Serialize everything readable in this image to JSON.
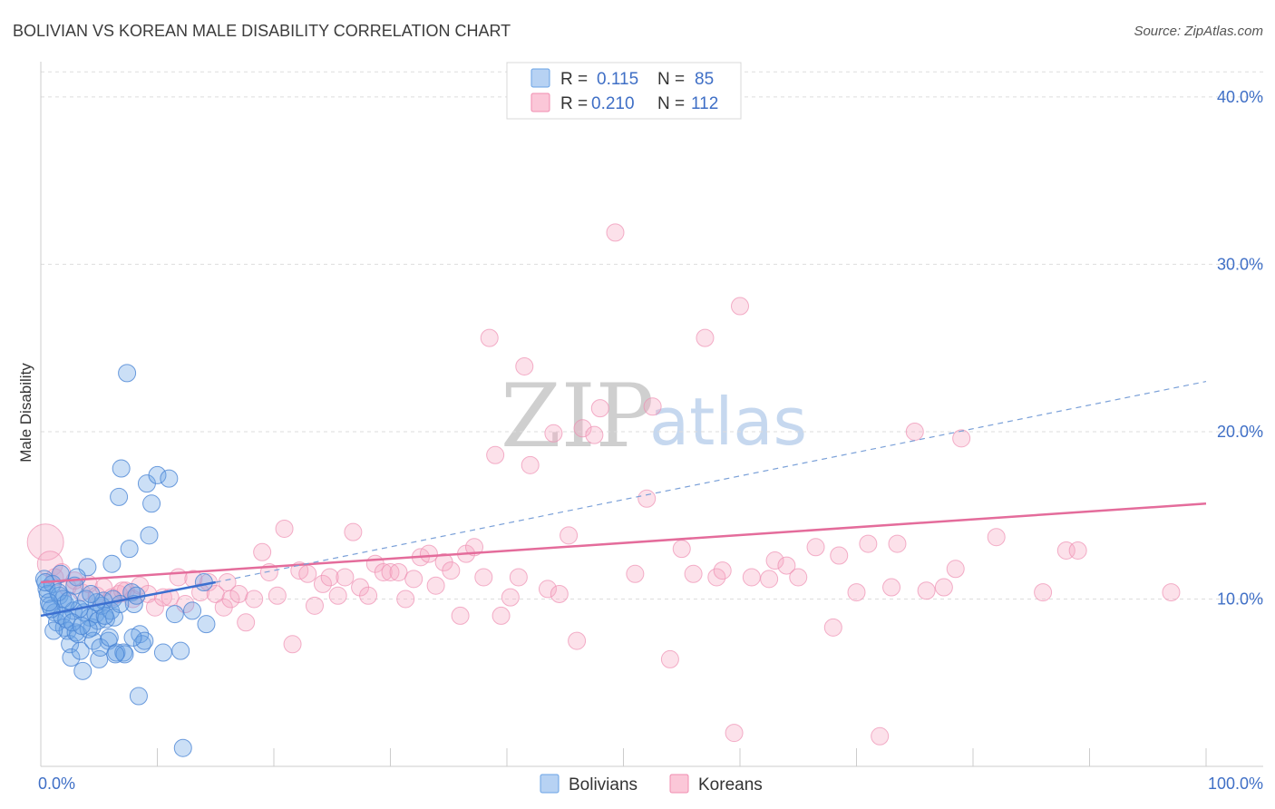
{
  "chart_data": {
    "type": "scatter",
    "title": "BOLIVIAN VS KOREAN MALE DISABILITY CORRELATION CHART",
    "source": "Source: ZipAtlas.com",
    "xlabel": "",
    "ylabel": "Male Disability",
    "xlim": [
      0,
      100
    ],
    "ylim": [
      0,
      42
    ],
    "x_tick_labels": [
      "0.0%",
      "100.0%"
    ],
    "y_ticks": [
      10,
      20,
      30,
      40
    ],
    "y_tick_labels": [
      "10.0%",
      "20.0%",
      "30.0%",
      "40.0%"
    ],
    "grid": true,
    "watermark": {
      "zip": "ZIP",
      "atlas": "atlas"
    },
    "legend": {
      "position": "top-center",
      "entries": [
        {
          "r_label": "R =",
          "r": "0.115",
          "n_label": "N =",
          "n": "85",
          "color": "#6aa3e6"
        },
        {
          "r_label": "R =",
          "r": "0.210",
          "n_label": "N =",
          "n": "112",
          "color": "#f08cb0"
        }
      ]
    },
    "series": [
      {
        "name": "Bolivians",
        "color": "#6aa3e6",
        "edge": "#4a84d4",
        "trend": {
          "x": [
            0,
            15
          ],
          "y": [
            9.0,
            11.0
          ],
          "style": "solid",
          "color": "#3b6fd0"
        },
        "trend_ext": {
          "x": [
            15,
            100
          ],
          "y": [
            11.0,
            23.0
          ],
          "style": "dashed",
          "color": "#7aa0d8"
        },
        "points": [
          [
            0.3,
            11.2
          ],
          [
            0.5,
            10.6
          ],
          [
            0.6,
            10.3
          ],
          [
            0.8,
            9.6
          ],
          [
            1.0,
            10.9
          ],
          [
            1.2,
            9.2
          ],
          [
            1.4,
            8.6
          ],
          [
            1.6,
            10.2
          ],
          [
            1.8,
            9.0
          ],
          [
            2.0,
            8.3
          ],
          [
            2.1,
            9.7
          ],
          [
            2.3,
            8.1
          ],
          [
            2.5,
            7.3
          ],
          [
            2.6,
            6.5
          ],
          [
            2.8,
            9.3
          ],
          [
            3.0,
            8.0
          ],
          [
            3.2,
            7.9
          ],
          [
            3.4,
            6.9
          ],
          [
            3.6,
            5.7
          ],
          [
            3.7,
            9.2
          ],
          [
            3.9,
            10.0
          ],
          [
            4.0,
            11.9
          ],
          [
            4.2,
            8.9
          ],
          [
            4.4,
            8.3
          ],
          [
            4.5,
            7.5
          ],
          [
            4.7,
            9.1
          ],
          [
            4.9,
            8.7
          ],
          [
            5.0,
            6.4
          ],
          [
            5.2,
            9.6
          ],
          [
            5.4,
            9.9
          ],
          [
            5.6,
            8.8
          ],
          [
            5.8,
            7.5
          ],
          [
            6.0,
            9.3
          ],
          [
            6.1,
            12.1
          ],
          [
            6.3,
            8.9
          ],
          [
            6.5,
            6.8
          ],
          [
            6.7,
            16.1
          ],
          [
            6.9,
            17.8
          ],
          [
            7.1,
            6.8
          ],
          [
            7.2,
            6.7
          ],
          [
            7.4,
            23.5
          ],
          [
            7.6,
            13.0
          ],
          [
            7.8,
            10.4
          ],
          [
            8.0,
            9.7
          ],
          [
            8.2,
            10.2
          ],
          [
            8.4,
            4.2
          ],
          [
            8.5,
            7.9
          ],
          [
            8.7,
            7.3
          ],
          [
            8.9,
            7.5
          ],
          [
            9.1,
            16.9
          ],
          [
            9.3,
            13.8
          ],
          [
            9.5,
            15.7
          ],
          [
            10.0,
            17.4
          ],
          [
            10.5,
            6.8
          ],
          [
            11.0,
            17.2
          ],
          [
            11.5,
            9.1
          ],
          [
            12.0,
            6.9
          ],
          [
            12.2,
            1.1
          ],
          [
            13.0,
            9.3
          ],
          [
            14.0,
            11.0
          ],
          [
            14.2,
            8.5
          ],
          [
            2.2,
            8.8
          ],
          [
            1.9,
            10.0
          ],
          [
            3.3,
            9.4
          ],
          [
            4.1,
            8.2
          ],
          [
            0.9,
            9.4
          ],
          [
            1.5,
            10.4
          ],
          [
            2.7,
            8.6
          ],
          [
            5.5,
            9.0
          ],
          [
            6.2,
            10.0
          ],
          [
            3.5,
            8.4
          ],
          [
            4.8,
            9.8
          ],
          [
            1.1,
            8.1
          ],
          [
            2.4,
            9.9
          ],
          [
            5.1,
            7.1
          ],
          [
            0.7,
            9.8
          ],
          [
            3.1,
            11.3
          ],
          [
            6.8,
            9.7
          ],
          [
            7.9,
            7.7
          ],
          [
            2.9,
            10.8
          ],
          [
            4.3,
            10.3
          ],
          [
            1.7,
            11.5
          ],
          [
            5.9,
            7.7
          ],
          [
            0.4,
            11.0
          ],
          [
            6.4,
            6.7
          ]
        ]
      },
      {
        "name": "Koreans",
        "color": "#f5a9c4",
        "edge": "#ee8fb2",
        "trend": {
          "x": [
            0,
            100
          ],
          "y": [
            11.0,
            15.7
          ],
          "style": "solid",
          "color": "#e46c9b"
        },
        "points": [
          [
            0.4,
            13.4
          ],
          [
            0.8,
            12.1
          ],
          [
            1.2,
            11.3
          ],
          [
            1.8,
            11.6
          ],
          [
            2.3,
            10.7
          ],
          [
            2.9,
            11.1
          ],
          [
            3.5,
            10.4
          ],
          [
            4.1,
            10.9
          ],
          [
            4.8,
            10.2
          ],
          [
            5.4,
            10.7
          ],
          [
            6.1,
            10.1
          ],
          [
            6.7,
            10.3
          ],
          [
            7.3,
            10.5
          ],
          [
            7.9,
            10.0
          ],
          [
            8.5,
            10.8
          ],
          [
            9.2,
            10.3
          ],
          [
            9.8,
            9.5
          ],
          [
            10.5,
            10.1
          ],
          [
            11.1,
            10.1
          ],
          [
            11.8,
            11.3
          ],
          [
            12.4,
            9.7
          ],
          [
            13.1,
            11.2
          ],
          [
            13.7,
            10.4
          ],
          [
            14.4,
            11.0
          ],
          [
            15.0,
            10.3
          ],
          [
            15.7,
            9.5
          ],
          [
            16.3,
            10.0
          ],
          [
            17.0,
            10.3
          ],
          [
            17.6,
            8.6
          ],
          [
            18.3,
            10.0
          ],
          [
            19.0,
            12.8
          ],
          [
            19.6,
            11.6
          ],
          [
            20.3,
            10.2
          ],
          [
            20.9,
            14.2
          ],
          [
            21.6,
            7.3
          ],
          [
            22.2,
            11.7
          ],
          [
            22.9,
            11.5
          ],
          [
            23.5,
            9.6
          ],
          [
            24.2,
            10.9
          ],
          [
            24.8,
            11.3
          ],
          [
            25.5,
            10.2
          ],
          [
            26.1,
            11.3
          ],
          [
            26.8,
            14.0
          ],
          [
            27.4,
            10.7
          ],
          [
            28.1,
            10.2
          ],
          [
            28.7,
            12.1
          ],
          [
            29.4,
            11.6
          ],
          [
            30.0,
            11.6
          ],
          [
            30.7,
            11.6
          ],
          [
            31.3,
            10.0
          ],
          [
            32.0,
            11.2
          ],
          [
            32.6,
            12.5
          ],
          [
            33.3,
            12.7
          ],
          [
            33.9,
            10.8
          ],
          [
            34.6,
            12.2
          ],
          [
            35.2,
            11.7
          ],
          [
            36.0,
            9.0
          ],
          [
            36.5,
            12.7
          ],
          [
            37.2,
            13.1
          ],
          [
            38.0,
            11.3
          ],
          [
            38.5,
            25.6
          ],
          [
            39.0,
            18.6
          ],
          [
            39.5,
            9.0
          ],
          [
            40.3,
            10.1
          ],
          [
            41.0,
            11.3
          ],
          [
            41.5,
            23.9
          ],
          [
            42.0,
            18.0
          ],
          [
            43.5,
            10.6
          ],
          [
            44.0,
            19.9
          ],
          [
            44.5,
            10.3
          ],
          [
            45.3,
            13.8
          ],
          [
            46.0,
            7.5
          ],
          [
            46.5,
            20.2
          ],
          [
            47.5,
            19.8
          ],
          [
            48.0,
            21.4
          ],
          [
            49.3,
            31.9
          ],
          [
            51.0,
            11.5
          ],
          [
            52.0,
            16.0
          ],
          [
            52.5,
            21.5
          ],
          [
            54.0,
            6.4
          ],
          [
            55.0,
            13.0
          ],
          [
            56.0,
            11.5
          ],
          [
            57.0,
            25.6
          ],
          [
            58.0,
            11.3
          ],
          [
            58.5,
            11.7
          ],
          [
            59.5,
            2.0
          ],
          [
            60.0,
            27.5
          ],
          [
            61.0,
            11.3
          ],
          [
            62.5,
            11.2
          ],
          [
            63.0,
            12.3
          ],
          [
            64.0,
            12.0
          ],
          [
            65.0,
            11.3
          ],
          [
            66.5,
            13.1
          ],
          [
            68.0,
            8.3
          ],
          [
            68.5,
            12.6
          ],
          [
            70.0,
            10.4
          ],
          [
            71.0,
            13.3
          ],
          [
            72.0,
            1.8
          ],
          [
            73.0,
            10.7
          ],
          [
            73.5,
            13.3
          ],
          [
            75.0,
            20.0
          ],
          [
            76.0,
            10.5
          ],
          [
            77.5,
            10.7
          ],
          [
            78.5,
            11.8
          ],
          [
            79.0,
            19.6
          ],
          [
            82.0,
            13.7
          ],
          [
            86.0,
            10.4
          ],
          [
            88.0,
            12.9
          ],
          [
            89.0,
            12.9
          ],
          [
            97.0,
            10.4
          ],
          [
            7.0,
            10.5
          ],
          [
            16.0,
            11.0
          ]
        ]
      }
    ]
  }
}
